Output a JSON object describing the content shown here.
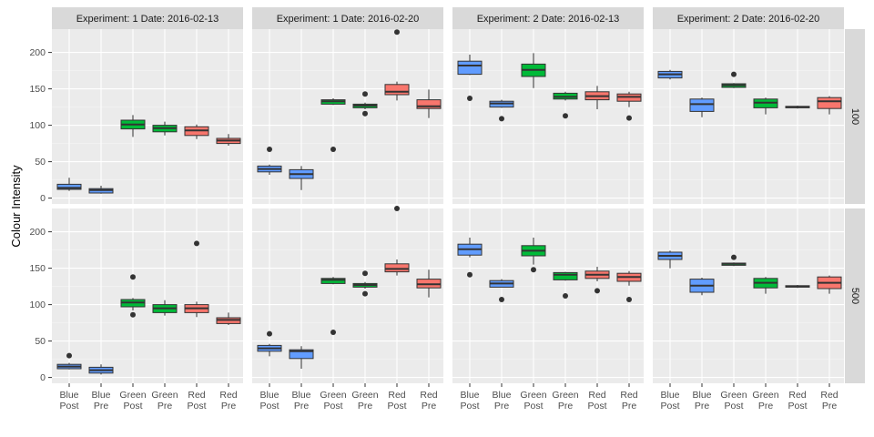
{
  "chart_data": {
    "type": "boxplot",
    "ylabel": "Colour Intensity",
    "xlabel": "",
    "ylim": [
      -8,
      232
    ],
    "yticks": [
      0,
      50,
      100,
      150,
      200
    ],
    "grid": true,
    "legend": "none",
    "categories": [
      {
        "line1": "Blue",
        "line2": "Post"
      },
      {
        "line1": "Blue",
        "line2": "Pre"
      },
      {
        "line1": "Green",
        "line2": "Post"
      },
      {
        "line1": "Green",
        "line2": "Pre"
      },
      {
        "line1": "Red",
        "line2": "Post"
      },
      {
        "line1": "Red",
        "line2": "Pre"
      }
    ],
    "category_colors": [
      "#619CFF",
      "#619CFF",
      "#00BA38",
      "#00BA38",
      "#F8766D",
      "#F8766D"
    ],
    "column_facets": [
      "Experiment: 1 Date: 2016-02-13",
      "Experiment: 1 Date: 2016-02-20",
      "Experiment: 2 Date: 2016-02-13",
      "Experiment: 2 Date: 2016-02-20"
    ],
    "row_facets": [
      "100",
      "500"
    ],
    "panels": [
      {
        "col": 0,
        "row": 0,
        "boxes": [
          {
            "min": 10,
            "q1": 12,
            "median": 14,
            "q3": 19,
            "max": 28,
            "outliers": []
          },
          {
            "min": 6,
            "q1": 7,
            "median": 11,
            "q3": 13,
            "max": 17,
            "outliers": []
          },
          {
            "min": 84,
            "q1": 95,
            "median": 101,
            "q3": 107,
            "max": 114,
            "outliers": []
          },
          {
            "min": 86,
            "q1": 91,
            "median": 96,
            "q3": 100,
            "max": 105,
            "outliers": []
          },
          {
            "min": 81,
            "q1": 86,
            "median": 93,
            "q3": 98,
            "max": 101,
            "outliers": []
          },
          {
            "min": 72,
            "q1": 75,
            "median": 79,
            "q3": 82,
            "max": 88,
            "outliers": []
          }
        ]
      },
      {
        "col": 1,
        "row": 0,
        "boxes": [
          {
            "min": 32,
            "q1": 36,
            "median": 40,
            "q3": 44,
            "max": 46,
            "outliers": [
              67
            ]
          },
          {
            "min": 11,
            "q1": 27,
            "median": 33,
            "q3": 39,
            "max": 44,
            "outliers": []
          },
          {
            "min": 128,
            "q1": 129,
            "median": 133,
            "q3": 135,
            "max": 137,
            "outliers": [
              67
            ]
          },
          {
            "min": 122,
            "q1": 124,
            "median": 127,
            "q3": 129,
            "max": 131,
            "outliers": [
              116,
              143
            ]
          },
          {
            "min": 134,
            "q1": 142,
            "median": 146,
            "q3": 156,
            "max": 160,
            "outliers": [
              228
            ]
          },
          {
            "min": 110,
            "q1": 123,
            "median": 126,
            "q3": 135,
            "max": 149,
            "outliers": []
          }
        ]
      },
      {
        "col": 2,
        "row": 0,
        "boxes": [
          {
            "min": 169,
            "q1": 170,
            "median": 182,
            "q3": 188,
            "max": 197,
            "outliers": [
              137
            ]
          },
          {
            "min": 124,
            "q1": 125,
            "median": 130,
            "q3": 133,
            "max": 135,
            "outliers": [
              109
            ]
          },
          {
            "min": 151,
            "q1": 167,
            "median": 176,
            "q3": 184,
            "max": 199,
            "outliers": []
          },
          {
            "min": 134,
            "q1": 136,
            "median": 139,
            "q3": 144,
            "max": 146,
            "outliers": [
              113
            ]
          },
          {
            "min": 122,
            "q1": 135,
            "median": 140,
            "q3": 146,
            "max": 154,
            "outliers": []
          },
          {
            "min": 125,
            "q1": 133,
            "median": 139,
            "q3": 143,
            "max": 146,
            "outliers": [
              110
            ]
          }
        ]
      },
      {
        "col": 3,
        "row": 0,
        "boxes": [
          {
            "min": 163,
            "q1": 165,
            "median": 170,
            "q3": 174,
            "max": 176,
            "outliers": []
          },
          {
            "min": 111,
            "q1": 119,
            "median": 129,
            "q3": 136,
            "max": 138,
            "outliers": []
          },
          {
            "min": 151,
            "q1": 152,
            "median": 155,
            "q3": 157,
            "max": 158,
            "outliers": [
              170
            ]
          },
          {
            "min": 115,
            "q1": 124,
            "median": 131,
            "q3": 136,
            "max": 138,
            "outliers": []
          },
          {
            "min": 123,
            "q1": 124,
            "median": 125,
            "q3": 126,
            "max": 127,
            "outliers": []
          },
          {
            "min": 115,
            "q1": 123,
            "median": 133,
            "q3": 138,
            "max": 140,
            "outliers": []
          }
        ]
      },
      {
        "col": 0,
        "row": 1,
        "boxes": [
          {
            "min": 11,
            "q1": 12,
            "median": 15,
            "q3": 18,
            "max": 20,
            "outliers": [
              30
            ]
          },
          {
            "min": 4,
            "q1": 6,
            "median": 10,
            "q3": 14,
            "max": 18,
            "outliers": []
          },
          {
            "min": 92,
            "q1": 97,
            "median": 103,
            "q3": 107,
            "max": 109,
            "outliers": [
              86,
              138
            ]
          },
          {
            "min": 85,
            "q1": 89,
            "median": 95,
            "q3": 100,
            "max": 106,
            "outliers": []
          },
          {
            "min": 83,
            "q1": 89,
            "median": 95,
            "q3": 100,
            "max": 104,
            "outliers": [
              184
            ]
          },
          {
            "min": 72,
            "q1": 74,
            "median": 79,
            "q3": 82,
            "max": 89,
            "outliers": []
          }
        ]
      },
      {
        "col": 1,
        "row": 1,
        "boxes": [
          {
            "min": 29,
            "q1": 36,
            "median": 40,
            "q3": 44,
            "max": 46,
            "outliers": [
              60
            ]
          },
          {
            "min": 12,
            "q1": 26,
            "median": 36,
            "q3": 38,
            "max": 43,
            "outliers": []
          },
          {
            "min": 128,
            "q1": 129,
            "median": 134,
            "q3": 136,
            "max": 138,
            "outliers": [
              62
            ]
          },
          {
            "min": 122,
            "q1": 124,
            "median": 127,
            "q3": 129,
            "max": 131,
            "outliers": [
              115,
              143
            ]
          },
          {
            "min": 140,
            "q1": 145,
            "median": 149,
            "q3": 156,
            "max": 162,
            "outliers": [
              232
            ]
          },
          {
            "min": 110,
            "q1": 123,
            "median": 128,
            "q3": 135,
            "max": 148,
            "outliers": []
          }
        ]
      },
      {
        "col": 2,
        "row": 1,
        "boxes": [
          {
            "min": 165,
            "q1": 168,
            "median": 176,
            "q3": 183,
            "max": 192,
            "outliers": [
              141
            ]
          },
          {
            "min": 124,
            "q1": 124,
            "median": 129,
            "q3": 133,
            "max": 135,
            "outliers": [
              107
            ]
          },
          {
            "min": 155,
            "q1": 167,
            "median": 174,
            "q3": 181,
            "max": 192,
            "outliers": [
              148
            ]
          },
          {
            "min": 133,
            "q1": 134,
            "median": 141,
            "q3": 144,
            "max": 145,
            "outliers": [
              112
            ]
          },
          {
            "min": 132,
            "q1": 136,
            "median": 141,
            "q3": 146,
            "max": 152,
            "outliers": [
              119
            ]
          },
          {
            "min": 126,
            "q1": 132,
            "median": 138,
            "q3": 143,
            "max": 146,
            "outliers": [
              107
            ]
          }
        ]
      },
      {
        "col": 3,
        "row": 1,
        "boxes": [
          {
            "min": 150,
            "q1": 162,
            "median": 167,
            "q3": 172,
            "max": 174,
            "outliers": []
          },
          {
            "min": 113,
            "q1": 117,
            "median": 126,
            "q3": 135,
            "max": 137,
            "outliers": []
          },
          {
            "min": 153,
            "q1": 154,
            "median": 156,
            "q3": 157,
            "max": 158,
            "outliers": [
              165
            ]
          },
          {
            "min": 115,
            "q1": 123,
            "median": 130,
            "q3": 136,
            "max": 138,
            "outliers": []
          },
          {
            "min": 123,
            "q1": 124,
            "median": 125,
            "q3": 126,
            "max": 127,
            "outliers": []
          },
          {
            "min": 115,
            "q1": 122,
            "median": 130,
            "q3": 138,
            "max": 140,
            "outliers": []
          }
        ]
      }
    ]
  }
}
